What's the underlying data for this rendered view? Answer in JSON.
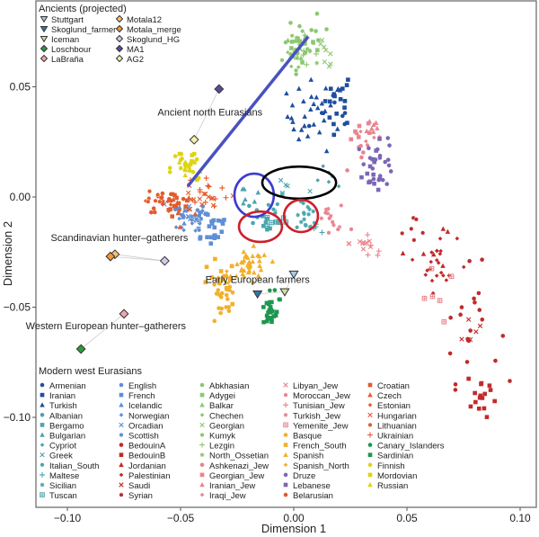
{
  "chart_data": {
    "type": "scatter",
    "title": "",
    "xlabel": "Dimension 1",
    "ylabel": "Dimension 2",
    "xlim": [
      -0.112,
      0.11
    ],
    "ylim": [
      -0.113,
      0.079
    ],
    "xticks": [
      -0.1,
      -0.05,
      0.0,
      0.05,
      0.1
    ],
    "xtick_labels": [
      "−0.10",
      "−0.05",
      "0.00",
      "0.05",
      "0.10"
    ],
    "yticks": [
      0.05,
      0.0,
      -0.05,
      -0.1
    ],
    "ytick_labels": [
      "0.05",
      "0.00",
      "−0.05",
      "−0.10"
    ],
    "grid": false,
    "legends": [
      {
        "title": "Ancients (projected)",
        "placement": "top-left",
        "columns": 2,
        "entries": [
          "Stuttgart",
          "Skoglund_farmer",
          "Iceman",
          "Loschbour",
          "LaBraña",
          "Motala12",
          "Motala_merge",
          "Skoglund_HG",
          "MA1",
          "AG2"
        ]
      },
      {
        "title": "Modern west Eurasians",
        "placement": "bottom-left",
        "columns": 5,
        "entries": [
          "Armenian",
          "Iranian",
          "Turkish",
          "Albanian",
          "Bergamo",
          "Bulgarian",
          "Cypriot",
          "Greek",
          "Italian_South",
          "Maltese",
          "Sicilian",
          "Tuscan",
          "English",
          "French",
          "Icelandic",
          "Norwegian",
          "Orcadian",
          "Scottish",
          "BedouinA",
          "BedouinB",
          "Jordanian",
          "Palestinian",
          "Saudi",
          "Syrian",
          "Abkhasian",
          "Adygei",
          "Balkar",
          "Chechen",
          "Georgian",
          "Kumyk",
          "Lezgin",
          "North_Ossetian",
          "Ashkenazi_Jew",
          "Georgian_Jew",
          "Iranian_Jew",
          "Iraqi_Jew",
          "Libyan_Jew",
          "Moroccan_Jew",
          "Tunisian_Jew",
          "Turkish_Jew",
          "Yemenite_Jew",
          "Basque",
          "French_South",
          "Spanish",
          "Spanish_North",
          "Druze",
          "Lebanese",
          "Belarusian",
          "Croatian",
          "Czech",
          "Estonian",
          "Hungarian",
          "Lithuanian",
          "Ukrainian",
          "Canary_Islanders",
          "Sardinian",
          "Finnish",
          "Mordovian",
          "Russian"
        ]
      }
    ],
    "annotations": [
      {
        "text": "Ancient north Eurasians",
        "x": -0.037,
        "y": 0.037
      },
      {
        "text": "Scandinavian hunter–gatherers",
        "x": -0.077,
        "y": -0.02
      },
      {
        "text": "Early European farmers",
        "x": -0.016,
        "y": -0.039
      },
      {
        "text": "Western European hunter–gatherers",
        "x": -0.083,
        "y": -0.06
      }
    ],
    "ancients": [
      {
        "name": "Stuttgart",
        "x": 0.0,
        "y": -0.035,
        "marker": "tri-down",
        "color": "#a9c9e8"
      },
      {
        "name": "Skoglund_farmer",
        "x": -0.016,
        "y": -0.044,
        "marker": "tri-down",
        "color": "#2f78b5"
      },
      {
        "name": "Iceman",
        "x": -0.004,
        "y": -0.043,
        "marker": "tri-down",
        "color": "#cfdf9a"
      },
      {
        "name": "Loschbour",
        "x": -0.094,
        "y": -0.069,
        "marker": "diamond",
        "color": "#2c9a3c"
      },
      {
        "name": "LaBraña",
        "x": -0.075,
        "y": -0.053,
        "marker": "diamond",
        "color": "#eea6b4"
      },
      {
        "name": "Motala12",
        "x": -0.079,
        "y": -0.026,
        "marker": "diamond",
        "color": "#f2c27a"
      },
      {
        "name": "Motala_merge",
        "x": -0.081,
        "y": -0.027,
        "marker": "diamond",
        "color": "#ef9a3a"
      },
      {
        "name": "Skoglund_HG",
        "x": -0.057,
        "y": -0.029,
        "marker": "diamond",
        "color": "#d6c8e6"
      },
      {
        "name": "MA1",
        "x": -0.033,
        "y": 0.049,
        "marker": "diamond",
        "color": "#5b4a9a"
      },
      {
        "name": "AG2",
        "x": -0.044,
        "y": 0.026,
        "marker": "diamond",
        "color": "#f4efaa"
      }
    ],
    "ancient_links": [
      [
        "MA1",
        "AG2"
      ],
      [
        "Motala12",
        "Skoglund_HG"
      ],
      [
        "Motala_merge",
        "Skoglund_HG"
      ],
      [
        "LaBraña",
        "Loschbour"
      ],
      [
        "Skoglund_farmer",
        "Iceman"
      ],
      [
        "Iceman",
        "Stuttgart"
      ]
    ],
    "modern_populations": [
      {
        "name": "Armenian",
        "color": "#1f4e9f",
        "marker": "circle",
        "cx": 0.02,
        "cy": 0.036,
        "sx": 0.008,
        "sy": 0.009,
        "n": 8
      },
      {
        "name": "Iranian",
        "color": "#1f4e9f",
        "marker": "square",
        "cx": 0.019,
        "cy": 0.045,
        "sx": 0.005,
        "sy": 0.008,
        "n": 16
      },
      {
        "name": "Turkish",
        "color": "#1f4e9f",
        "marker": "triangle",
        "cx": 0.01,
        "cy": 0.037,
        "sx": 0.008,
        "sy": 0.01,
        "n": 32
      },
      {
        "name": "Albanian",
        "color": "#4aa5ac",
        "marker": "circle",
        "cx": -0.018,
        "cy": -0.007,
        "sx": 0.003,
        "sy": 0.004,
        "n": 4
      },
      {
        "name": "Bergamo",
        "color": "#4aa5ac",
        "marker": "square",
        "cx": -0.014,
        "cy": -0.014,
        "sx": 0.003,
        "sy": 0.004,
        "n": 6
      },
      {
        "name": "Bulgarian",
        "color": "#4aa5ac",
        "marker": "triangle",
        "cx": -0.02,
        "cy": 0.001,
        "sx": 0.003,
        "sy": 0.004,
        "n": 6
      },
      {
        "name": "Cypriot",
        "color": "#4aa5ac",
        "marker": "plus-dot",
        "cx": 0.016,
        "cy": 0.008,
        "sx": 0.006,
        "sy": 0.003,
        "n": 6
      },
      {
        "name": "Greek",
        "color": "#4aa5ac",
        "marker": "x",
        "cx": -0.003,
        "cy": 0.004,
        "sx": 0.006,
        "sy": 0.003,
        "n": 6
      },
      {
        "name": "Italian_South",
        "color": "#4aa5ac",
        "marker": "ring",
        "cx": -0.012,
        "cy": -0.006,
        "sx": 0.004,
        "sy": 0.004,
        "n": 5
      },
      {
        "name": "Maltese",
        "color": "#4aa5ac",
        "marker": "plus",
        "cx": 0.01,
        "cy": -0.015,
        "sx": 0.003,
        "sy": 0.002,
        "n": 5
      },
      {
        "name": "Sicilian",
        "color": "#4aa5ac",
        "marker": "asterisk",
        "cx": 0.006,
        "cy": -0.009,
        "sx": 0.003,
        "sy": 0.004,
        "n": 16
      },
      {
        "name": "Tuscan",
        "color": "#4aa5ac",
        "marker": "boxed",
        "cx": -0.008,
        "cy": -0.011,
        "sx": 0.003,
        "sy": 0.002,
        "n": 8
      },
      {
        "name": "English",
        "color": "#5f8fd4",
        "marker": "circle",
        "cx": -0.045,
        "cy": -0.009,
        "sx": 0.004,
        "sy": 0.004,
        "n": 10
      },
      {
        "name": "French",
        "color": "#5f8fd4",
        "marker": "square",
        "cx": -0.037,
        "cy": -0.013,
        "sx": 0.006,
        "sy": 0.006,
        "n": 22
      },
      {
        "name": "Icelandic",
        "color": "#5f8fd4",
        "marker": "triangle",
        "cx": -0.048,
        "cy": -0.008,
        "sx": 0.004,
        "sy": 0.004,
        "n": 8
      },
      {
        "name": "Norwegian",
        "color": "#5f8fd4",
        "marker": "plus-dot",
        "cx": -0.045,
        "cy": -0.011,
        "sx": 0.004,
        "sy": 0.004,
        "n": 10
      },
      {
        "name": "Orcadian",
        "color": "#5f8fd4",
        "marker": "x",
        "cx": -0.046,
        "cy": -0.007,
        "sx": 0.004,
        "sy": 0.004,
        "n": 8
      },
      {
        "name": "Scottish",
        "color": "#5f8fd4",
        "marker": "ring",
        "cx": -0.044,
        "cy": -0.01,
        "sx": 0.003,
        "sy": 0.003,
        "n": 5
      },
      {
        "name": "BedouinA",
        "color": "#c22a2a",
        "marker": "circle",
        "cx": 0.078,
        "cy": -0.058,
        "sx": 0.008,
        "sy": 0.016,
        "n": 20
      },
      {
        "name": "BedouinB",
        "color": "#c22a2a",
        "marker": "square",
        "cx": 0.083,
        "cy": -0.09,
        "sx": 0.004,
        "sy": 0.008,
        "n": 16
      },
      {
        "name": "Jordanian",
        "color": "#c22a2a",
        "marker": "triangle",
        "cx": 0.058,
        "cy": -0.021,
        "sx": 0.006,
        "sy": 0.008,
        "n": 6
      },
      {
        "name": "Palestinian",
        "color": "#c22a2a",
        "marker": "plus-dot",
        "cx": 0.064,
        "cy": -0.03,
        "sx": 0.005,
        "sy": 0.008,
        "n": 22
      },
      {
        "name": "Saudi",
        "color": "#c22a2a",
        "marker": "x",
        "cx": 0.077,
        "cy": -0.06,
        "sx": 0.004,
        "sy": 0.006,
        "n": 6
      },
      {
        "name": "Syrian",
        "color": "#c22a2a",
        "marker": "ring",
        "cx": 0.055,
        "cy": -0.015,
        "sx": 0.006,
        "sy": 0.004,
        "n": 6
      },
      {
        "name": "Abkhasian",
        "color": "#8cc870",
        "marker": "circle",
        "cx": 0.006,
        "cy": 0.072,
        "sx": 0.006,
        "sy": 0.006,
        "n": 10
      },
      {
        "name": "Adygei",
        "color": "#8cc870",
        "marker": "square",
        "cx": 0.004,
        "cy": 0.068,
        "sx": 0.006,
        "sy": 0.007,
        "n": 10
      },
      {
        "name": "Balkar",
        "color": "#8cc870",
        "marker": "triangle",
        "cx": 0.003,
        "cy": 0.067,
        "sx": 0.004,
        "sy": 0.004,
        "n": 6
      },
      {
        "name": "Chechen",
        "color": "#8cc870",
        "marker": "plus-dot",
        "cx": 0.002,
        "cy": 0.066,
        "sx": 0.004,
        "sy": 0.004,
        "n": 10
      },
      {
        "name": "Georgian",
        "color": "#8cc870",
        "marker": "x",
        "cx": 0.014,
        "cy": 0.065,
        "sx": 0.003,
        "sy": 0.004,
        "n": 8
      },
      {
        "name": "Kumyk",
        "color": "#8cc870",
        "marker": "ring",
        "cx": 0.0,
        "cy": 0.063,
        "sx": 0.004,
        "sy": 0.004,
        "n": 6
      },
      {
        "name": "Lezgin",
        "color": "#8cc870",
        "marker": "plus",
        "cx": 0.004,
        "cy": 0.066,
        "sx": 0.004,
        "sy": 0.004,
        "n": 6
      },
      {
        "name": "North_Ossetian",
        "color": "#8cc870",
        "marker": "asterisk",
        "cx": 0.003,
        "cy": 0.069,
        "sx": 0.004,
        "sy": 0.004,
        "n": 12
      },
      {
        "name": "Ashkenazi_Jew",
        "color": "#e8848e",
        "marker": "circle",
        "cx": 0.03,
        "cy": 0.018,
        "sx": 0.004,
        "sy": 0.004,
        "n": 5
      },
      {
        "name": "Georgian_Jew",
        "color": "#e8848e",
        "marker": "square",
        "cx": 0.03,
        "cy": 0.03,
        "sx": 0.004,
        "sy": 0.004,
        "n": 6
      },
      {
        "name": "Iranian_Jew",
        "color": "#e8848e",
        "marker": "triangle",
        "cx": 0.033,
        "cy": 0.031,
        "sx": 0.004,
        "sy": 0.004,
        "n": 8
      },
      {
        "name": "Iraqi_Jew",
        "color": "#e8848e",
        "marker": "plus-dot",
        "cx": 0.034,
        "cy": 0.027,
        "sx": 0.004,
        "sy": 0.004,
        "n": 6
      },
      {
        "name": "Libyan_Jew",
        "color": "#e8848e",
        "marker": "x",
        "cx": 0.031,
        "cy": -0.021,
        "sx": 0.004,
        "sy": 0.003,
        "n": 10
      },
      {
        "name": "Moroccan_Jew",
        "color": "#e8848e",
        "marker": "ring",
        "cx": 0.02,
        "cy": -0.013,
        "sx": 0.006,
        "sy": 0.004,
        "n": 6
      },
      {
        "name": "Tunisian_Jew",
        "color": "#e8848e",
        "marker": "plus",
        "cx": 0.034,
        "cy": -0.025,
        "sx": 0.004,
        "sy": 0.003,
        "n": 5
      },
      {
        "name": "Turkish_Jew",
        "color": "#e8848e",
        "marker": "asterisk",
        "cx": 0.017,
        "cy": -0.008,
        "sx": 0.005,
        "sy": 0.004,
        "n": 8
      },
      {
        "name": "Yemenite_Jew",
        "color": "#e8848e",
        "marker": "boxed",
        "cx": 0.062,
        "cy": -0.046,
        "sx": 0.006,
        "sy": 0.008,
        "n": 6
      },
      {
        "name": "Basque",
        "color": "#f2b02a",
        "marker": "circle",
        "cx": -0.032,
        "cy": -0.048,
        "sx": 0.004,
        "sy": 0.007,
        "n": 18
      },
      {
        "name": "French_South",
        "color": "#f2b02a",
        "marker": "square",
        "cx": -0.033,
        "cy": -0.04,
        "sx": 0.005,
        "sy": 0.007,
        "n": 14
      },
      {
        "name": "Spanish",
        "color": "#f2b02a",
        "marker": "triangle",
        "cx": -0.019,
        "cy": -0.032,
        "sx": 0.005,
        "sy": 0.005,
        "n": 40
      },
      {
        "name": "Spanish_North",
        "color": "#f2b02a",
        "marker": "plus-dot",
        "cx": -0.03,
        "cy": -0.037,
        "sx": 0.004,
        "sy": 0.004,
        "n": 6
      },
      {
        "name": "Druze",
        "color": "#7b66b6",
        "marker": "circle",
        "cx": 0.038,
        "cy": 0.016,
        "sx": 0.004,
        "sy": 0.007,
        "n": 22
      },
      {
        "name": "Lebanese",
        "color": "#7b66b6",
        "marker": "square",
        "cx": 0.036,
        "cy": 0.013,
        "sx": 0.004,
        "sy": 0.007,
        "n": 12
      },
      {
        "name": "Belarusian",
        "color": "#e35b2c",
        "marker": "circle",
        "cx": -0.055,
        "cy": -0.002,
        "sx": 0.006,
        "sy": 0.003,
        "n": 12
      },
      {
        "name": "Croatian",
        "color": "#e35b2c",
        "marker": "square",
        "cx": -0.054,
        "cy": -0.003,
        "sx": 0.006,
        "sy": 0.003,
        "n": 10
      },
      {
        "name": "Czech",
        "color": "#e35b2c",
        "marker": "triangle",
        "cx": -0.048,
        "cy": -0.004,
        "sx": 0.005,
        "sy": 0.003,
        "n": 6
      },
      {
        "name": "Estonian",
        "color": "#e35b2c",
        "marker": "plus-dot",
        "cx": -0.058,
        "cy": -0.002,
        "sx": 0.004,
        "sy": 0.003,
        "n": 8
      },
      {
        "name": "Hungarian",
        "color": "#e35b2c",
        "marker": "x",
        "cx": -0.042,
        "cy": -0.002,
        "sx": 0.006,
        "sy": 0.004,
        "n": 14
      },
      {
        "name": "Lithuanian",
        "color": "#e35b2c",
        "marker": "ring",
        "cx": -0.062,
        "cy": -0.001,
        "sx": 0.004,
        "sy": 0.003,
        "n": 6
      },
      {
        "name": "Ukrainian",
        "color": "#e35b2c",
        "marker": "plus",
        "cx": -0.038,
        "cy": 0.003,
        "sx": 0.006,
        "sy": 0.004,
        "n": 12
      },
      {
        "name": "Canary_Islanders",
        "color": "#1e9650",
        "marker": "circle",
        "cx": -0.01,
        "cy": -0.044,
        "sx": 0.003,
        "sy": 0.004,
        "n": 4
      },
      {
        "name": "Sardinian",
        "color": "#1e9650",
        "marker": "square",
        "cx": -0.011,
        "cy": -0.053,
        "sx": 0.003,
        "sy": 0.004,
        "n": 22
      },
      {
        "name": "Finnish",
        "color": "#dfd410",
        "marker": "circle",
        "cx": -0.048,
        "cy": 0.013,
        "sx": 0.004,
        "sy": 0.006,
        "n": 12
      },
      {
        "name": "Mordovian",
        "color": "#dfd410",
        "marker": "square",
        "cx": -0.045,
        "cy": 0.015,
        "sx": 0.004,
        "sy": 0.005,
        "n": 8
      },
      {
        "name": "Russian",
        "color": "#dfd410",
        "marker": "triangle",
        "cx": -0.047,
        "cy": 0.013,
        "sx": 0.004,
        "sy": 0.004,
        "n": 10
      }
    ],
    "overlays": [
      {
        "type": "line",
        "color": "#4a52c0",
        "x1": -0.0465,
        "y1": 0.0053,
        "x2": 0.006,
        "y2": 0.0723
      },
      {
        "type": "ellipse",
        "color": "#3c3ccf",
        "cx": -0.0175,
        "cy": 0.0008,
        "rx": 0.0087,
        "ry": 0.0098
      },
      {
        "type": "ellipse",
        "color": "#000000",
        "cx": 0.0024,
        "cy": 0.0065,
        "rx": 0.0163,
        "ry": 0.0073
      },
      {
        "type": "ellipse",
        "color": "#cc1f2a",
        "cx": -0.0147,
        "cy": -0.0135,
        "rx": 0.0095,
        "ry": 0.0069
      },
      {
        "type": "ellipse",
        "color": "#cc1f2a",
        "cx": 0.0032,
        "cy": -0.0086,
        "rx": 0.0075,
        "ry": 0.0073
      }
    ]
  }
}
